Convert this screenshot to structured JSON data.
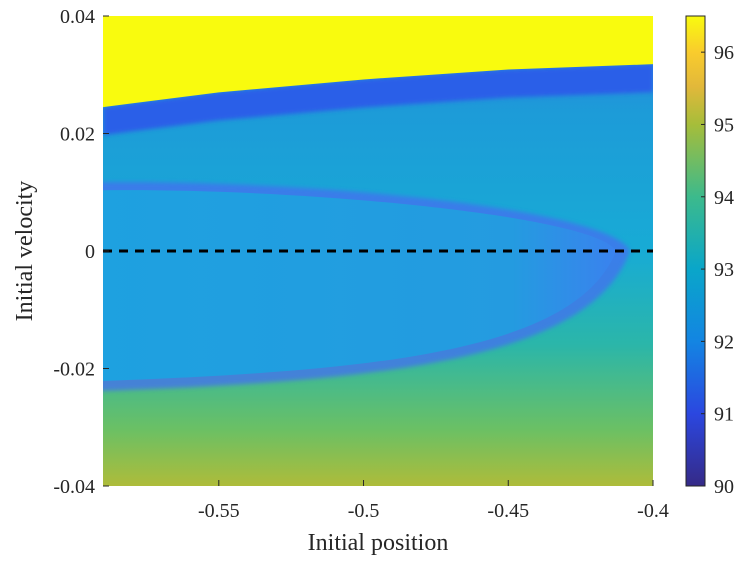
{
  "chart_data": {
    "type": "heatmap",
    "title": "",
    "xlabel": "Initial position",
    "ylabel": "Initial velocity",
    "xlim": [
      -0.59,
      -0.4
    ],
    "ylim": [
      -0.04,
      0.04
    ],
    "x_ticks": [
      -0.55,
      -0.5,
      -0.45,
      -0.4
    ],
    "x_tick_labels": [
      "-0.55",
      "-0.5",
      "-0.45",
      "-0.4"
    ],
    "y_ticks": [
      -0.04,
      -0.02,
      0,
      0.02,
      0.04
    ],
    "y_tick_labels": [
      "-0.04",
      "-0.02",
      "0",
      "0.02",
      "0.04"
    ],
    "colorbar": {
      "range": [
        90,
        96.5
      ],
      "ticks": [
        90,
        91,
        92,
        93,
        94,
        95,
        96
      ],
      "tick_labels": [
        "90",
        "91",
        "92",
        "93",
        "94",
        "95",
        "96"
      ],
      "colormap": "parula"
    },
    "reference_line": {
      "y": 0,
      "style": "dashed",
      "color": "#000000"
    },
    "regions": [
      {
        "name": "upper",
        "value": 96.5,
        "boundary_velocity_at_x": [
          [
            -0.59,
            0.0245
          ],
          [
            -0.55,
            0.027
          ],
          [
            -0.5,
            0.0292
          ],
          [
            -0.45,
            0.0309
          ],
          [
            -0.4,
            0.0318
          ]
        ]
      },
      {
        "name": "band-edge",
        "value": 90.8
      },
      {
        "name": "inner-lobe",
        "value": 92.4,
        "upper_velocity": 0.011,
        "lower_velocity": -0.023,
        "tip_position": -0.41
      },
      {
        "name": "background-top",
        "value": 93.0
      },
      {
        "name": "background-bottom",
        "value": 94.6
      }
    ],
    "grid": false,
    "legend": "colorbar-right"
  }
}
